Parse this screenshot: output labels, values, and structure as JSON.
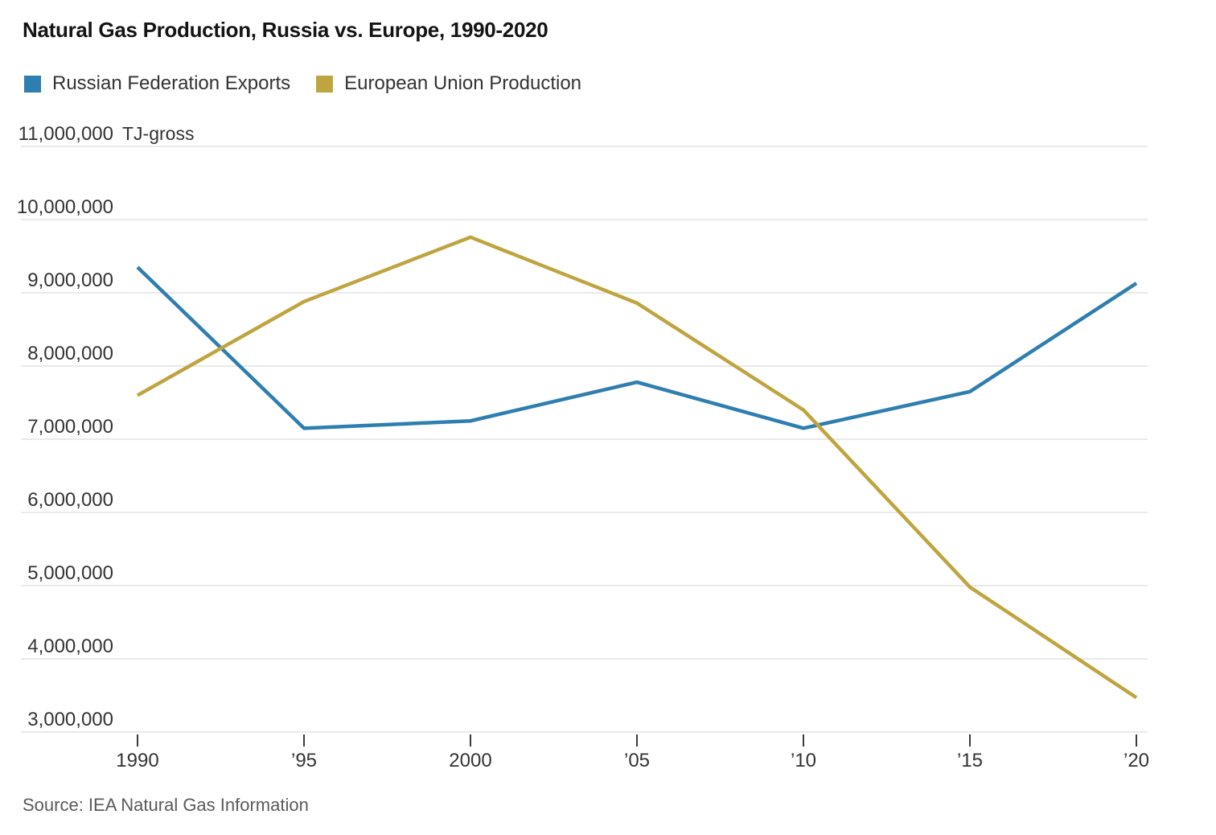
{
  "title": "Natural Gas Production, Russia vs. Europe, 1990-2020",
  "source": "Source: IEA Natural Gas Information",
  "legend": [
    {
      "label": "Russian Federation Exports",
      "color": "#2f7eb0"
    },
    {
      "label": "European Union Production",
      "color": "#bfa53f"
    }
  ],
  "colors": {
    "russia_line": "#2f7eb0",
    "eu_line": "#bfa53f",
    "gridline": "#e4e4e4",
    "axis_text": "#333333",
    "tick_mark": "#3c3c3c",
    "title_text": "#141414",
    "source_text": "#5a5a5a"
  },
  "chart_data": {
    "type": "line",
    "title": "Natural Gas Production, Russia vs. Europe, 1990-2020",
    "unit_label": "TJ-gross",
    "x": [
      1990,
      1995,
      2000,
      2005,
      2010,
      2015,
      2020
    ],
    "x_tick_labels": [
      "1990",
      "’95",
      "2000",
      "’05",
      "’10",
      "’15",
      "’20"
    ],
    "y_ticks": [
      3000000,
      4000000,
      5000000,
      6000000,
      7000000,
      8000000,
      9000000,
      10000000,
      11000000
    ],
    "y_tick_labels": [
      "3,000,000",
      "4,000,000",
      "5,000,000",
      "6,000,000",
      "7,000,000",
      "8,000,000",
      "9,000,000",
      "10,000,000",
      "11,000,000"
    ],
    "ylim": [
      3000000,
      11000000
    ],
    "grid": true,
    "legend_position": "top-left",
    "series": [
      {
        "name": "Russian Federation Exports",
        "color": "#2f7eb0",
        "values": [
          9350000,
          7150000,
          7250000,
          7780000,
          7150000,
          7650000,
          9130000
        ]
      },
      {
        "name": "European Union Production",
        "color": "#bfa53f",
        "values": [
          7600000,
          8880000,
          9760000,
          8860000,
          7400000,
          4980000,
          3470000
        ]
      }
    ]
  }
}
